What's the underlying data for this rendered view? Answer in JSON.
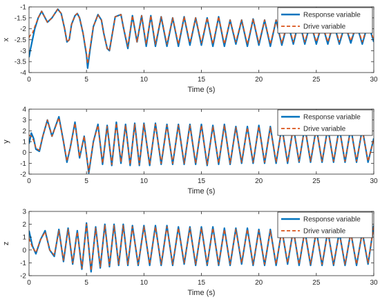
{
  "chart_data": [
    {
      "type": "line",
      "xlabel": "Time (s)",
      "ylabel": "x",
      "xlim": [
        0,
        30
      ],
      "ylim": [
        -4,
        -1
      ],
      "xticks": [
        0,
        5,
        10,
        15,
        20,
        25,
        30
      ],
      "yticks": [
        -4,
        -3.5,
        -3,
        -2.5,
        -2,
        -1.5,
        -1
      ],
      "ytick_labels": [
        "-4",
        "-3.5",
        "-3",
        "-2.5",
        "-2",
        "-1.5",
        "-1"
      ],
      "legend_position": "top-right",
      "series": [
        {
          "name": "Response variable",
          "color": "#0072BD",
          "style": "solid",
          "x": [
            0,
            0.1,
            0.3,
            0.5,
            0.8,
            1.1,
            1.6,
            2.0,
            2.5,
            2.8,
            3.1,
            3.3,
            3.5,
            3.7,
            4.0,
            4.2,
            4.4,
            4.7,
            5.0,
            5.1,
            5.3,
            5.6,
            6.0,
            6.3,
            6.5,
            6.8,
            7.0,
            7.5,
            8.0,
            8.2,
            8.6,
            9.0,
            9.4,
            9.8,
            10.2,
            10.6,
            11.0,
            11.5,
            12.0,
            12.5,
            13.0,
            13.5,
            14.0,
            14.5,
            15.0,
            15.5,
            16.0,
            16.5,
            17.0,
            17.5,
            18.0,
            18.5,
            19.0,
            19.5,
            20.0,
            20.5,
            21.0,
            21.5,
            22.0,
            22.5,
            23.0,
            23.5,
            24.0,
            24.5,
            25.0,
            25.5,
            26.0,
            26.5,
            27.0,
            27.5,
            28.0,
            28.5,
            29.0,
            29.5,
            30.0
          ],
          "y": [
            -3.3,
            -3.0,
            -2.5,
            -2.0,
            -1.5,
            -1.2,
            -1.7,
            -1.5,
            -1.1,
            -1.3,
            -2.0,
            -2.6,
            -2.5,
            -1.8,
            -1.4,
            -1.3,
            -1.5,
            -2.2,
            -3.2,
            -3.8,
            -3.0,
            -1.9,
            -1.35,
            -1.6,
            -2.2,
            -2.9,
            -3.0,
            -1.45,
            -1.35,
            -1.9,
            -2.9,
            -1.4,
            -2.6,
            -1.4,
            -2.8,
            -1.4,
            -2.8,
            -1.45,
            -2.8,
            -1.5,
            -2.8,
            -1.45,
            -2.75,
            -1.5,
            -2.75,
            -1.5,
            -2.8,
            -1.45,
            -2.8,
            -1.6,
            -2.7,
            -1.6,
            -2.8,
            -1.55,
            -2.75,
            -1.6,
            -2.8,
            -1.6,
            -2.75,
            -1.7,
            -2.7,
            -1.6,
            -2.7,
            -1.7,
            -2.7,
            -1.75,
            -2.7,
            -1.7,
            -2.7,
            -1.8,
            -2.65,
            -1.8,
            -2.7,
            -1.75,
            -2.6
          ]
        },
        {
          "name": "Drive variable",
          "color": "#D95319",
          "style": "dashed",
          "x": [
            0,
            0.1,
            0.3,
            0.5,
            0.8,
            1.1,
            1.6,
            2.0,
            2.5,
            2.8,
            3.1,
            3.3,
            3.5,
            3.7,
            4.0,
            4.2,
            4.4,
            4.7,
            5.0,
            5.1,
            5.3,
            5.6,
            6.0,
            6.3,
            6.5,
            6.8,
            7.0,
            7.5,
            8.0,
            8.2,
            8.6,
            9.0,
            9.4,
            9.8,
            10.2,
            10.6,
            11.0,
            11.5,
            12.0,
            12.5,
            13.0,
            13.5,
            14.0,
            14.5,
            15.0,
            15.5,
            16.0,
            16.5,
            17.0,
            17.5,
            18.0,
            18.5,
            19.0,
            19.5,
            20.0,
            20.5,
            21.0,
            21.5,
            22.0,
            22.5,
            23.0,
            23.5,
            24.0,
            24.5,
            25.0,
            25.5,
            26.0,
            26.5,
            27.0,
            27.5,
            28.0,
            28.5,
            29.0,
            29.5,
            30.0
          ],
          "y": [
            -2.4,
            -2.3,
            -2.2,
            -1.9,
            -1.5,
            -1.2,
            -1.7,
            -1.5,
            -1.1,
            -1.3,
            -2.0,
            -2.6,
            -2.5,
            -1.8,
            -1.4,
            -1.3,
            -1.5,
            -2.2,
            -3.1,
            -3.6,
            -2.9,
            -1.9,
            -1.35,
            -1.6,
            -2.2,
            -2.9,
            -3.0,
            -1.45,
            -1.35,
            -1.9,
            -2.8,
            -1.4,
            -2.6,
            -1.4,
            -2.7,
            -1.4,
            -2.7,
            -1.45,
            -2.7,
            -1.5,
            -2.7,
            -1.45,
            -2.65,
            -1.5,
            -2.65,
            -1.5,
            -2.7,
            -1.45,
            -2.7,
            -1.6,
            -2.6,
            -1.6,
            -2.7,
            -1.55,
            -2.65,
            -1.6,
            -2.7,
            -1.6,
            -2.65,
            -1.7,
            -2.6,
            -1.6,
            -2.6,
            -1.7,
            -2.6,
            -1.75,
            -2.6,
            -1.7,
            -2.6,
            -1.8,
            -2.55,
            -1.8,
            -2.6,
            -1.75,
            -2.5
          ]
        }
      ]
    },
    {
      "type": "line",
      "xlabel": "Time (s)",
      "ylabel": "y",
      "xlim": [
        0,
        30
      ],
      "ylim": [
        -2,
        4
      ],
      "xticks": [
        0,
        5,
        10,
        15,
        20,
        25,
        30
      ],
      "yticks": [
        -2,
        -1,
        0,
        1,
        2,
        3,
        4
      ],
      "ytick_labels": [
        "-2",
        "-1",
        "0",
        "1",
        "2",
        "3",
        "4"
      ],
      "legend_position": "top-right",
      "series": [
        {
          "name": "Response variable",
          "color": "#0072BD",
          "style": "solid",
          "x": [
            0,
            0.2,
            0.4,
            0.6,
            0.9,
            1.2,
            1.6,
            2.0,
            2.6,
            3.0,
            3.3,
            3.6,
            4.0,
            4.4,
            4.8,
            5.2,
            5.6,
            6.0,
            6.4,
            6.8,
            7.2,
            7.6,
            8.0,
            8.4,
            8.8,
            9.2,
            9.6,
            10.0,
            10.5,
            11.0,
            11.5,
            12.0,
            12.5,
            13.0,
            13.5,
            14.0,
            14.5,
            15.0,
            15.5,
            16.0,
            16.5,
            17.0,
            17.5,
            18.0,
            18.5,
            19.0,
            19.5,
            20.0,
            20.5,
            21.0,
            21.5,
            22.0,
            22.5,
            23.0,
            23.5,
            24.0,
            24.5,
            25.0,
            25.5,
            26.0,
            26.5,
            27.0,
            27.5,
            28.0,
            28.5,
            29.0,
            29.5,
            30.0
          ],
          "y": [
            0.8,
            1.8,
            1.3,
            0.3,
            0.1,
            1.5,
            3.0,
            1.5,
            3.3,
            1.0,
            -0.9,
            0.5,
            2.8,
            -0.5,
            1.5,
            -1.9,
            1.0,
            2.6,
            -1.1,
            2.5,
            -1.2,
            2.8,
            -1.0,
            2.6,
            -1.2,
            2.7,
            -1.2,
            2.7,
            -1.2,
            2.7,
            -1.1,
            2.6,
            -1.1,
            2.6,
            -1.1,
            2.6,
            -1.1,
            2.6,
            -1.2,
            2.5,
            -1.1,
            2.6,
            -1.1,
            2.4,
            -1.0,
            2.4,
            -1.0,
            2.5,
            -1.0,
            2.4,
            -1.0,
            2.4,
            -1.0,
            2.4,
            -0.9,
            2.4,
            -0.9,
            2.3,
            -0.9,
            2.3,
            -0.9,
            2.3,
            -0.9,
            2.3,
            -0.9,
            2.2,
            -0.9,
            1.3
          ]
        },
        {
          "name": "Drive variable",
          "color": "#D95319",
          "style": "dashed",
          "x": [
            0,
            0.2,
            0.4,
            0.6,
            0.9,
            1.2,
            1.6,
            2.0,
            2.6,
            3.0,
            3.3,
            3.6,
            4.0,
            4.4,
            4.8,
            5.2,
            5.6,
            6.0,
            6.4,
            6.8,
            7.2,
            7.6,
            8.0,
            8.4,
            8.8,
            9.2,
            9.6,
            10.0,
            10.5,
            11.0,
            11.5,
            12.0,
            12.5,
            13.0,
            13.5,
            14.0,
            14.5,
            15.0,
            15.5,
            16.0,
            16.5,
            17.0,
            17.5,
            18.0,
            18.5,
            19.0,
            19.5,
            20.0,
            20.5,
            21.0,
            21.5,
            22.0,
            22.5,
            23.0,
            23.5,
            24.0,
            24.5,
            25.0,
            25.5,
            26.0,
            26.5,
            27.0,
            27.5,
            28.0,
            28.5,
            29.0,
            29.5,
            30.0
          ],
          "y": [
            1.6,
            1.5,
            1.1,
            0.4,
            0.2,
            1.5,
            3.0,
            1.5,
            3.2,
            1.0,
            -0.8,
            0.5,
            2.7,
            -0.4,
            1.5,
            -1.8,
            1.0,
            2.5,
            -1.0,
            2.4,
            -1.1,
            2.7,
            -0.9,
            2.5,
            -1.1,
            2.6,
            -1.1,
            2.6,
            -1.1,
            2.6,
            -1.0,
            2.5,
            -1.0,
            2.5,
            -1.0,
            2.5,
            -1.0,
            2.5,
            -1.1,
            2.4,
            -1.0,
            2.5,
            -1.0,
            2.3,
            -0.9,
            2.3,
            -0.9,
            2.4,
            -0.9,
            2.3,
            -0.9,
            2.3,
            -0.9,
            2.3,
            -0.8,
            2.3,
            -0.8,
            2.2,
            -0.8,
            2.2,
            -0.8,
            2.2,
            -0.8,
            2.2,
            -0.8,
            2.1,
            -0.8,
            1.2
          ]
        }
      ]
    },
    {
      "type": "line",
      "xlabel": "Time (s)",
      "ylabel": "z",
      "xlim": [
        0,
        30
      ],
      "ylim": [
        -2,
        3
      ],
      "xticks": [
        0,
        5,
        10,
        15,
        20,
        25,
        30
      ],
      "yticks": [
        -2,
        -1,
        0,
        1,
        2,
        3
      ],
      "ytick_labels": [
        "-2",
        "-1",
        "0",
        "1",
        "2",
        "3"
      ],
      "legend_position": "top-right",
      "series": [
        {
          "name": "Response variable",
          "color": "#0072BD",
          "style": "solid",
          "x": [
            0,
            0.3,
            0.6,
            1.0,
            1.4,
            1.8,
            2.2,
            2.6,
            3.0,
            3.4,
            3.8,
            4.2,
            4.6,
            5.0,
            5.4,
            5.8,
            6.2,
            6.6,
            7.0,
            7.4,
            7.8,
            8.2,
            8.6,
            9.0,
            9.5,
            10.0,
            10.5,
            11.0,
            11.5,
            12.0,
            12.5,
            13.0,
            13.5,
            14.0,
            14.5,
            15.0,
            15.5,
            16.0,
            16.5,
            17.0,
            17.5,
            18.0,
            18.5,
            19.0,
            19.5,
            20.0,
            20.5,
            21.0,
            21.5,
            22.0,
            22.5,
            23.0,
            23.5,
            24.0,
            24.5,
            25.0,
            25.5,
            26.0,
            26.5,
            27.0,
            27.5,
            28.0,
            28.5,
            29.0,
            29.5,
            30.0
          ],
          "y": [
            1.5,
            0.3,
            -0.3,
            0.8,
            1.5,
            0.0,
            -0.5,
            1.6,
            -0.9,
            1.7,
            -1.1,
            1.5,
            -1.5,
            2.1,
            -1.7,
            1.8,
            -1.4,
            2.0,
            -1.3,
            2.0,
            -1.2,
            2.0,
            -1.2,
            1.9,
            -1.2,
            1.9,
            -1.2,
            1.9,
            -1.2,
            1.9,
            -1.2,
            1.8,
            -1.1,
            1.8,
            -1.2,
            1.8,
            -1.2,
            1.8,
            -1.2,
            1.7,
            -1.2,
            1.7,
            -1.1,
            1.7,
            -1.2,
            1.6,
            -1.2,
            1.6,
            -1.2,
            1.6,
            -1.1,
            1.6,
            -1.2,
            1.5,
            -1.2,
            1.5,
            -1.2,
            1.5,
            -1.2,
            1.4,
            -1.2,
            1.4,
            -1.2,
            1.4,
            -1.1,
            1.9
          ]
        },
        {
          "name": "Drive variable",
          "color": "#D95319",
          "style": "dashed",
          "x": [
            0,
            0.3,
            0.6,
            1.0,
            1.4,
            1.8,
            2.2,
            2.6,
            3.0,
            3.4,
            3.8,
            4.2,
            4.6,
            5.0,
            5.4,
            5.8,
            6.2,
            6.6,
            7.0,
            7.4,
            7.8,
            8.2,
            8.6,
            9.0,
            9.5,
            10.0,
            10.5,
            11.0,
            11.5,
            12.0,
            12.5,
            13.0,
            13.5,
            14.0,
            14.5,
            15.0,
            15.5,
            16.0,
            16.5,
            17.0,
            17.5,
            18.0,
            18.5,
            19.0,
            19.5,
            20.0,
            20.5,
            21.0,
            21.5,
            22.0,
            22.5,
            23.0,
            23.5,
            24.0,
            24.5,
            25.0,
            25.5,
            26.0,
            26.5,
            27.0,
            27.5,
            28.0,
            28.5,
            29.0,
            29.5,
            30.0
          ],
          "y": [
            0.9,
            0.2,
            -0.2,
            0.8,
            1.4,
            0.0,
            -0.4,
            1.5,
            -0.8,
            1.6,
            -1.0,
            1.4,
            -1.4,
            2.0,
            -1.6,
            1.7,
            -1.3,
            1.9,
            -1.2,
            1.9,
            -1.1,
            1.9,
            -1.1,
            1.8,
            -1.1,
            1.8,
            -1.1,
            1.8,
            -1.1,
            1.8,
            -1.1,
            1.7,
            -1.0,
            1.7,
            -1.1,
            1.7,
            -1.1,
            1.7,
            -1.1,
            1.6,
            -1.1,
            1.6,
            -1.0,
            1.6,
            -1.1,
            1.5,
            -1.1,
            1.5,
            -1.1,
            1.5,
            -1.0,
            1.5,
            -1.1,
            1.4,
            -1.1,
            1.4,
            -1.1,
            1.4,
            -1.1,
            1.3,
            -1.1,
            1.3,
            -1.1,
            1.3,
            -1.0,
            1.8
          ]
        }
      ]
    }
  ]
}
